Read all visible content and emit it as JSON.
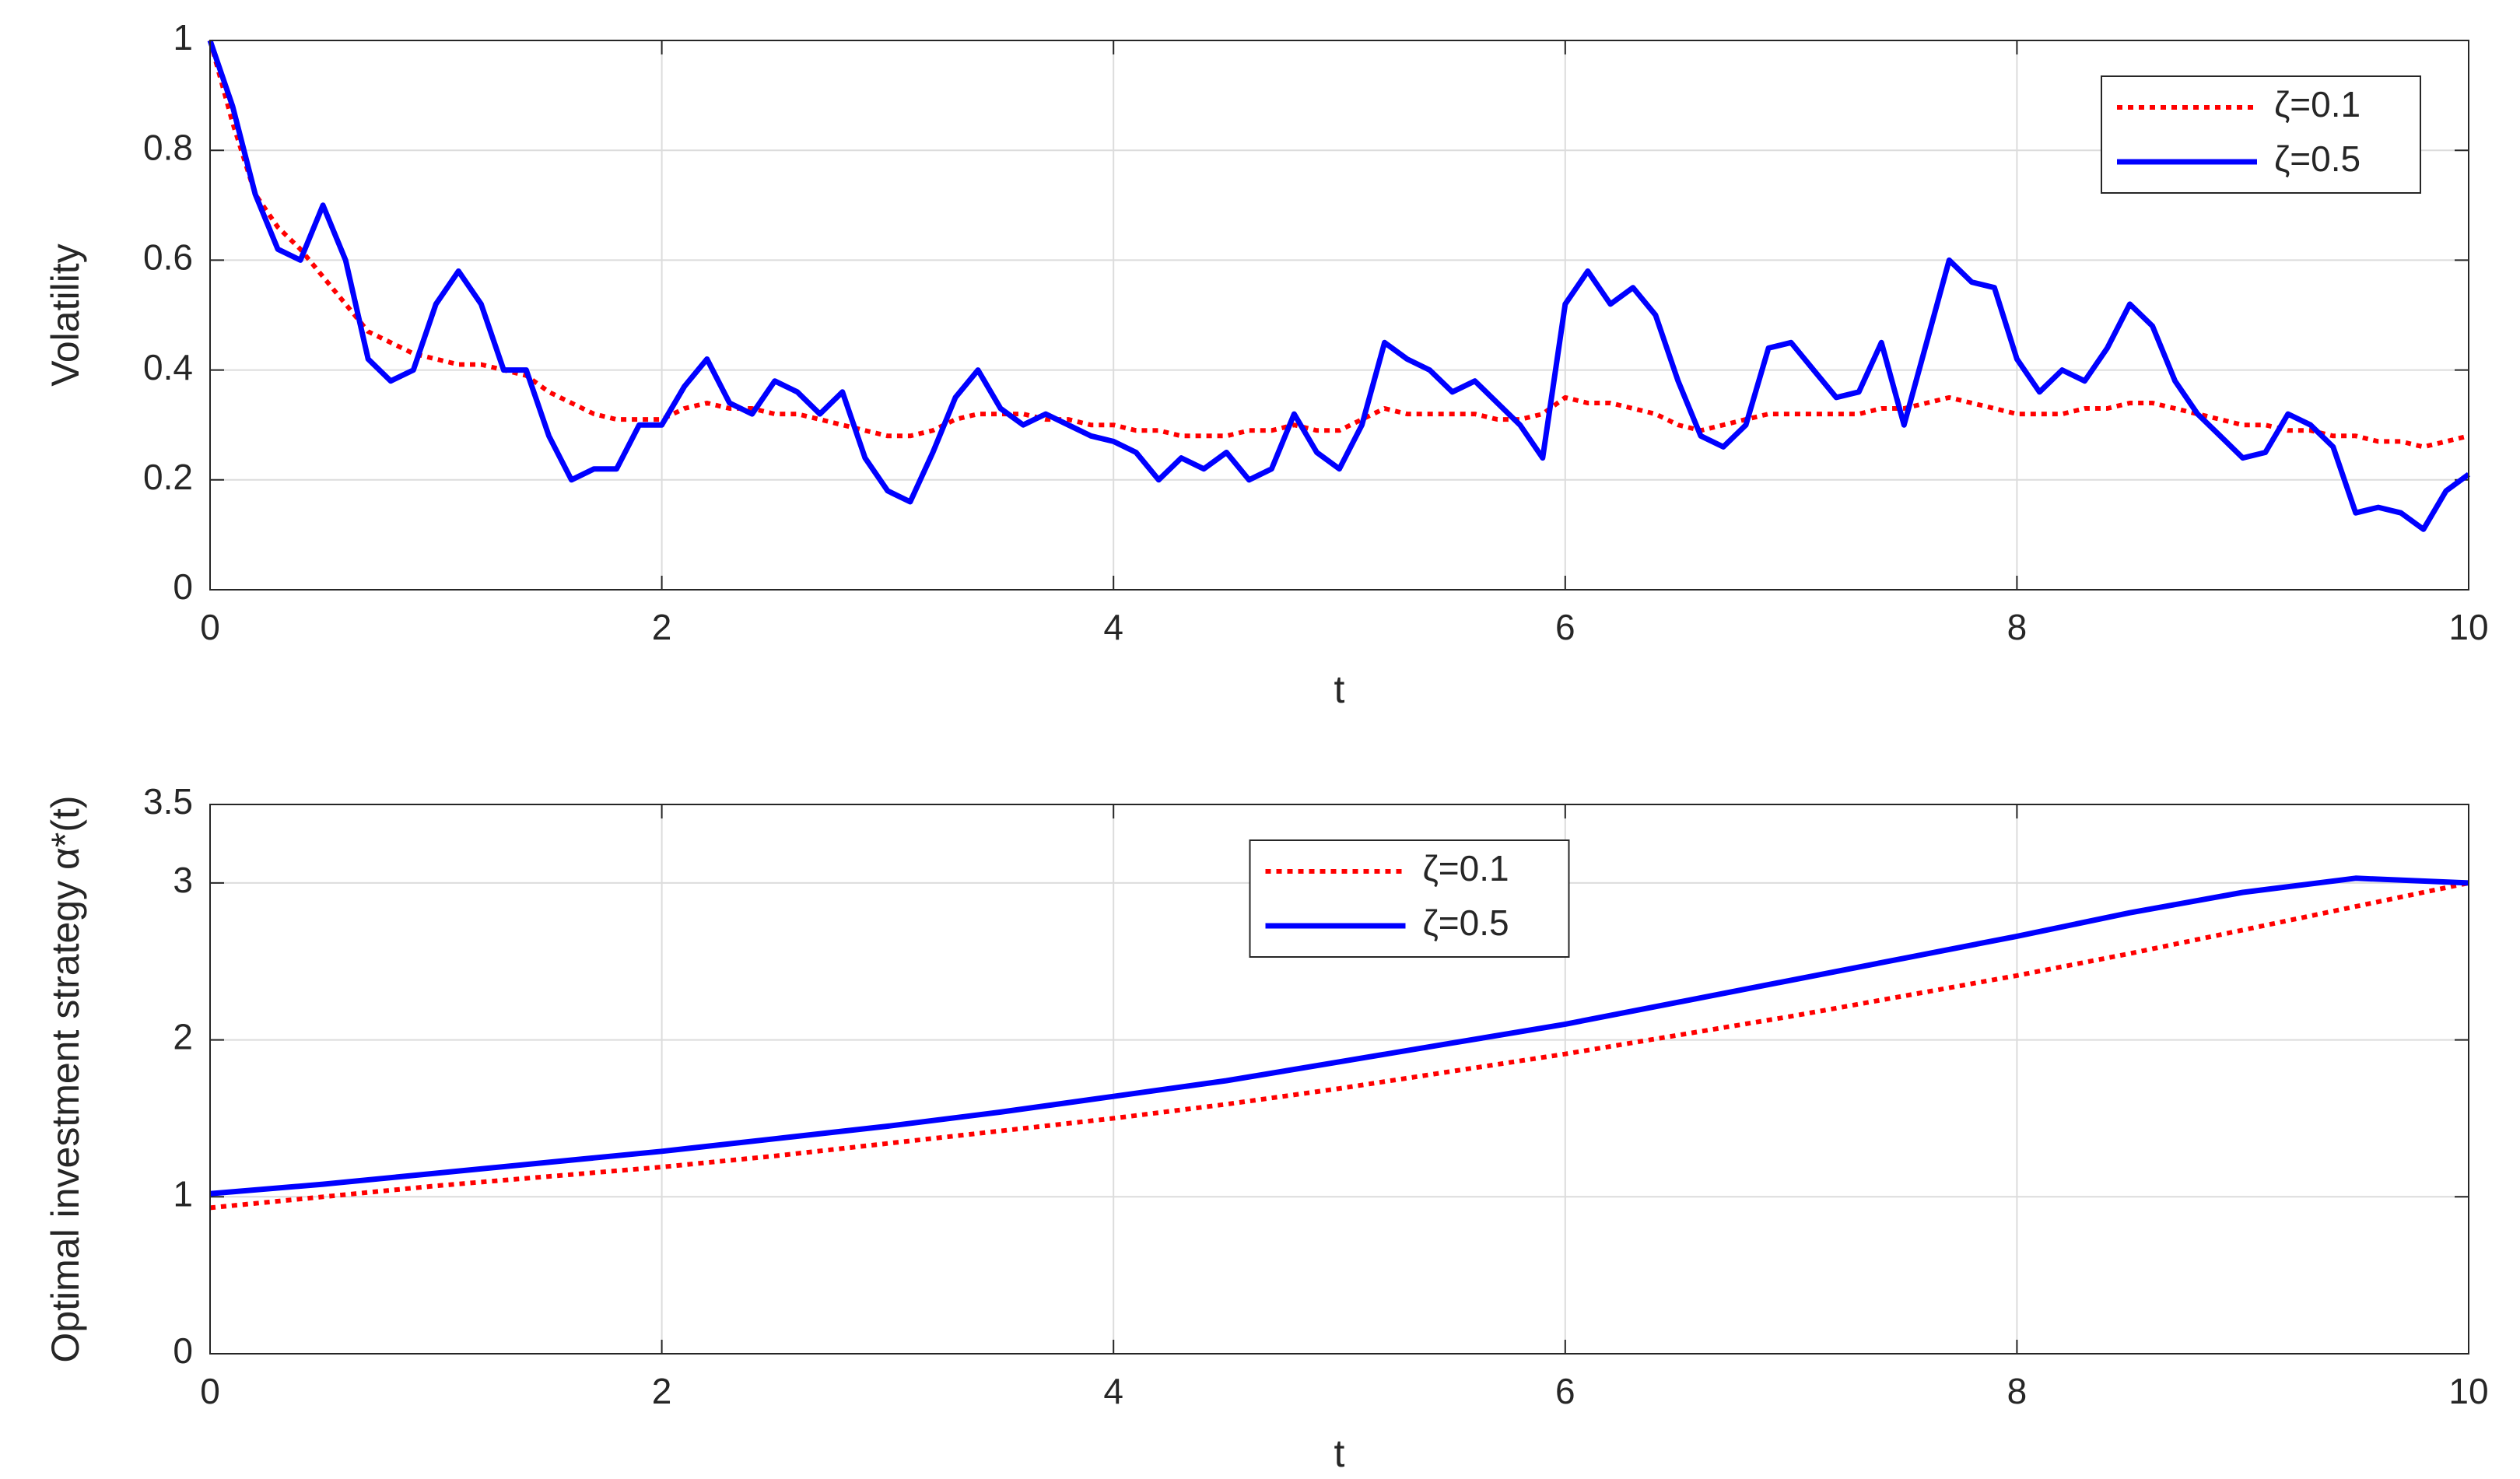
{
  "chart_data": [
    {
      "type": "line",
      "xlabel": "t",
      "ylabel": "Volatility",
      "x": [
        0,
        0.1,
        0.2,
        0.3,
        0.4,
        0.5,
        0.6,
        0.7,
        0.8,
        0.9,
        1,
        1.1,
        1.2,
        1.3,
        1.4,
        1.5,
        1.6,
        1.7,
        1.8,
        1.9,
        2,
        2.1,
        2.2,
        2.3,
        2.4,
        2.5,
        2.6,
        2.7,
        2.8,
        2.9,
        3,
        3.1,
        3.2,
        3.3,
        3.4,
        3.5,
        3.6,
        3.7,
        3.8,
        3.9,
        4,
        4.1,
        4.2,
        4.3,
        4.4,
        4.5,
        4.6,
        4.7,
        4.8,
        4.9,
        5,
        5.1,
        5.2,
        5.3,
        5.4,
        5.5,
        5.6,
        5.7,
        5.8,
        5.9,
        6,
        6.1,
        6.2,
        6.3,
        6.4,
        6.5,
        6.6,
        6.7,
        6.8,
        6.9,
        7,
        7.1,
        7.2,
        7.3,
        7.4,
        7.5,
        7.6,
        7.7,
        7.8,
        7.9,
        8,
        8.1,
        8.2,
        8.3,
        8.4,
        8.5,
        8.6,
        8.7,
        8.8,
        8.9,
        9,
        9.1,
        9.2,
        9.3,
        9.4,
        9.5,
        9.6,
        9.7,
        9.8,
        9.9,
        10
      ],
      "series": [
        {
          "name": "ζ=0.1",
          "color": "#ff0000",
          "dash": "dotted",
          "values": [
            1.0,
            0.85,
            0.72,
            0.66,
            0.62,
            0.57,
            0.52,
            0.47,
            0.45,
            0.43,
            0.42,
            0.41,
            0.41,
            0.4,
            0.39,
            0.36,
            0.34,
            0.32,
            0.31,
            0.31,
            0.31,
            0.33,
            0.34,
            0.33,
            0.33,
            0.32,
            0.32,
            0.31,
            0.3,
            0.29,
            0.28,
            0.28,
            0.29,
            0.31,
            0.32,
            0.32,
            0.32,
            0.31,
            0.31,
            0.3,
            0.3,
            0.29,
            0.29,
            0.28,
            0.28,
            0.28,
            0.29,
            0.29,
            0.3,
            0.29,
            0.29,
            0.31,
            0.33,
            0.32,
            0.32,
            0.32,
            0.32,
            0.31,
            0.31,
            0.32,
            0.35,
            0.34,
            0.34,
            0.33,
            0.32,
            0.3,
            0.29,
            0.3,
            0.31,
            0.32,
            0.32,
            0.32,
            0.32,
            0.32,
            0.33,
            0.33,
            0.34,
            0.35,
            0.34,
            0.33,
            0.32,
            0.32,
            0.32,
            0.33,
            0.33,
            0.34,
            0.34,
            0.33,
            0.32,
            0.31,
            0.3,
            0.3,
            0.29,
            0.29,
            0.28,
            0.28,
            0.27,
            0.27,
            0.26,
            0.27,
            0.28
          ]
        },
        {
          "name": "ζ=0.5",
          "color": "#0000ff",
          "dash": "solid",
          "values": [
            1.0,
            0.88,
            0.72,
            0.62,
            0.6,
            0.7,
            0.6,
            0.42,
            0.38,
            0.4,
            0.52,
            0.58,
            0.52,
            0.4,
            0.4,
            0.28,
            0.2,
            0.22,
            0.22,
            0.3,
            0.3,
            0.37,
            0.42,
            0.34,
            0.32,
            0.38,
            0.36,
            0.32,
            0.36,
            0.24,
            0.18,
            0.16,
            0.25,
            0.35,
            0.4,
            0.33,
            0.3,
            0.32,
            0.3,
            0.28,
            0.27,
            0.25,
            0.2,
            0.24,
            0.22,
            0.25,
            0.2,
            0.22,
            0.32,
            0.25,
            0.22,
            0.3,
            0.45,
            0.42,
            0.4,
            0.36,
            0.38,
            0.34,
            0.3,
            0.24,
            0.52,
            0.58,
            0.52,
            0.55,
            0.5,
            0.38,
            0.28,
            0.26,
            0.3,
            0.44,
            0.45,
            0.4,
            0.35,
            0.36,
            0.45,
            0.3,
            0.45,
            0.6,
            0.56,
            0.55,
            0.42,
            0.36,
            0.4,
            0.38,
            0.44,
            0.52,
            0.48,
            0.38,
            0.32,
            0.28,
            0.24,
            0.25,
            0.32,
            0.3,
            0.26,
            0.14,
            0.15,
            0.14,
            0.11,
            0.18,
            0.21
          ]
        }
      ],
      "xlim": [
        0,
        10
      ],
      "xticks": [
        0,
        2,
        4,
        6,
        8,
        10
      ],
      "ylim": [
        0,
        1
      ],
      "yticks": [
        0,
        0.2,
        0.4,
        0.6,
        0.8,
        1
      ],
      "grid": true,
      "legend": "upper right"
    },
    {
      "type": "line",
      "xlabel": "t",
      "ylabel": "Optimal investment strategy α*(t)",
      "x": [
        0,
        0.5,
        1,
        1.5,
        2,
        2.5,
        3,
        3.5,
        4,
        4.5,
        5,
        5.5,
        6,
        6.5,
        7,
        7.5,
        8,
        8.5,
        9,
        9.5,
        10
      ],
      "series": [
        {
          "name": "ζ=0.1",
          "color": "#ff0000",
          "dash": "dotted",
          "values": [
            0.93,
            1.0,
            1.07,
            1.13,
            1.19,
            1.26,
            1.34,
            1.42,
            1.5,
            1.59,
            1.69,
            1.8,
            1.91,
            2.03,
            2.15,
            2.28,
            2.41,
            2.55,
            2.7,
            2.85,
            3.0
          ]
        },
        {
          "name": "ζ=0.5",
          "color": "#0000ff",
          "dash": "solid",
          "values": [
            1.02,
            1.08,
            1.15,
            1.22,
            1.29,
            1.37,
            1.45,
            1.54,
            1.64,
            1.74,
            1.86,
            1.98,
            2.1,
            2.24,
            2.38,
            2.52,
            2.66,
            2.81,
            2.94,
            3.03,
            3.0
          ]
        }
      ],
      "xlim": [
        0,
        10
      ],
      "xticks": [
        0,
        2,
        4,
        6,
        8,
        10
      ],
      "ylim": [
        0,
        3.5
      ],
      "yticks": [
        0,
        1,
        2,
        3,
        3.5
      ],
      "grid": true,
      "legend": "upper center"
    }
  ]
}
